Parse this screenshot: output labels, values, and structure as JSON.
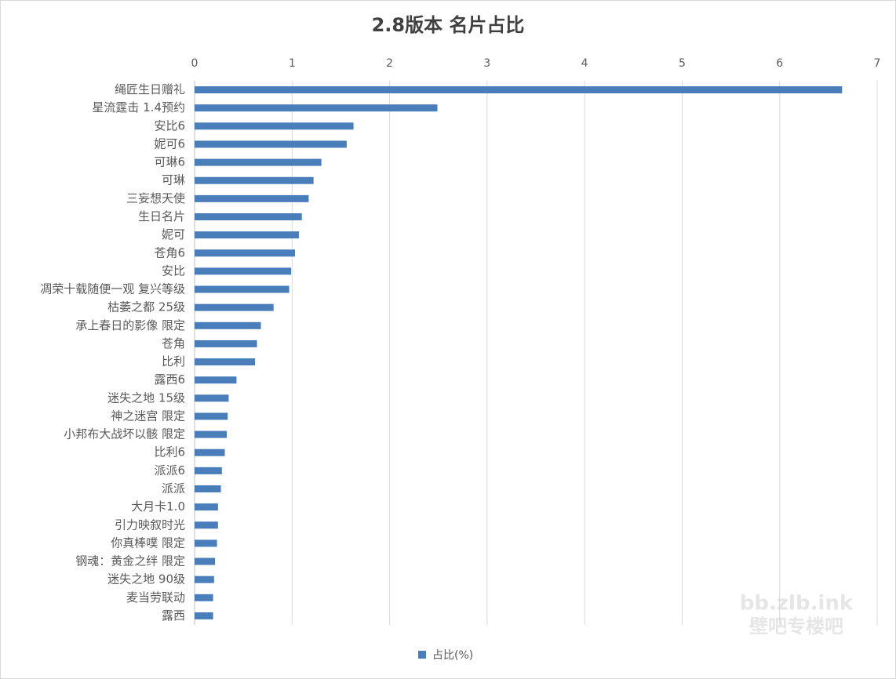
{
  "chart_data": {
    "type": "barh",
    "title": "2.8版本 名片占比",
    "categories": [
      "绳匠生日赠礼",
      "星流霆击 1.4预约",
      "安比6",
      "妮可6",
      "可琳6",
      "可琳",
      "三妄想天使",
      "生日名片",
      "妮可",
      "苍角6",
      "安比",
      "凋荣十载随便一观 复兴等级",
      "枯萎之都 25级",
      "承上春日的影像 限定",
      "苍角",
      "比利",
      "露西6",
      "迷失之地 15级",
      "神之迷宫 限定",
      "小邦布大战坏以骸 限定",
      "比利6",
      "派派6",
      "派派",
      "大月卡1.0",
      "引力映叙时光",
      "你真棒噗 限定",
      "钢魂：黄金之绊 限定",
      "迷失之地 90级",
      "麦当劳联动",
      "露西"
    ],
    "series": [
      {
        "name": "占比(%)",
        "color": "#4a7ebb",
        "values": [
          6.64,
          2.49,
          1.63,
          1.56,
          1.3,
          1.22,
          1.17,
          1.1,
          1.07,
          1.03,
          0.99,
          0.97,
          0.81,
          0.68,
          0.64,
          0.62,
          0.43,
          0.35,
          0.34,
          0.33,
          0.31,
          0.28,
          0.27,
          0.24,
          0.24,
          0.23,
          0.21,
          0.2,
          0.19,
          0.19
        ]
      }
    ],
    "xlim": [
      0,
      7
    ],
    "xticks": [
      0,
      1,
      2,
      3,
      4,
      5,
      6,
      7
    ],
    "grid": true,
    "legend": "bottom",
    "watermark": [
      "bb.zlb.ink",
      "壁吧专楼吧"
    ]
  }
}
